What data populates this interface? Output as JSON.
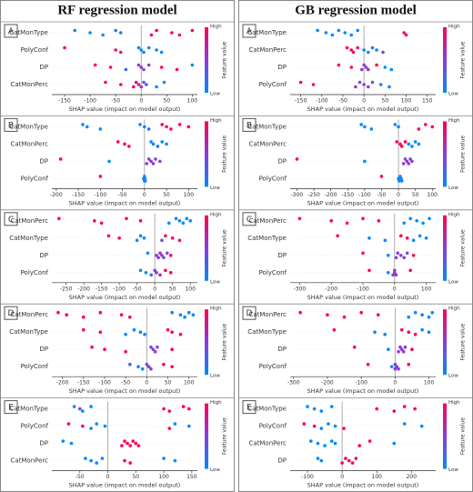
{
  "column_titles": [
    "RF regression model",
    "GB regression model"
  ],
  "colormap": [
    "#008bfb",
    "#8a3ddb",
    "#ff0052"
  ],
  "chart_data": [
    {
      "type": "beeswarm",
      "panel": "A",
      "xlabel": "SHAP value (impact on model output)",
      "colorbar": {
        "high": "High",
        "low": "Low",
        "label": "Feature value"
      },
      "xlim": [
        -175,
        110
      ],
      "xticks": [
        -150,
        -100,
        -50,
        0,
        50,
        100
      ],
      "series": [
        {
          "name": "CatMonType",
          "values": [
            -130,
            -100,
            -75,
            -50,
            -40,
            20,
            30,
            60,
            75,
            100
          ],
          "levels": [
            0,
            0,
            0,
            0.1,
            0.1,
            0.9,
            1,
            1,
            1,
            1
          ]
        },
        {
          "name": "PolyConf",
          "values": [
            -150,
            -50,
            -40,
            -5,
            0,
            5,
            15,
            30,
            40
          ],
          "levels": [
            1,
            1,
            0.9,
            0,
            0.1,
            0,
            0,
            0.1,
            0
          ]
        },
        {
          "name": "DP",
          "values": [
            -90,
            -60,
            -30,
            -5,
            0,
            5,
            15,
            40,
            70,
            100
          ],
          "levels": [
            1,
            1,
            0.2,
            0.5,
            0.6,
            0.4,
            0.5,
            1,
            1,
            0
          ]
        },
        {
          "name": "CatMonPerc",
          "values": [
            -70,
            -40,
            -15,
            -10,
            -5,
            0,
            5,
            10,
            30,
            45
          ],
          "levels": [
            1,
            0.9,
            1,
            0.8,
            0.7,
            0.6,
            0.4,
            0.2,
            0,
            0
          ]
        }
      ]
    },
    {
      "type": "beeswarm",
      "panel": "B",
      "xlabel": "SHAP value (impact on model output)",
      "colorbar": {
        "high": "High",
        "low": "Low",
        "label": "Feature value"
      },
      "xlim": [
        -210,
        120
      ],
      "xticks": [
        -200,
        -150,
        -100,
        -50,
        0,
        50,
        100
      ],
      "series": [
        {
          "name": "CatMonType",
          "values": [
            -140,
            -130,
            -100,
            -10,
            0,
            10,
            40,
            50,
            60,
            80,
            100
          ],
          "levels": [
            0,
            0,
            0,
            0,
            0.1,
            0.1,
            1,
            1,
            1,
            1,
            1
          ]
        },
        {
          "name": "CatMonPerc",
          "values": [
            -60,
            -45,
            -35,
            15,
            20,
            30,
            40,
            50
          ],
          "levels": [
            1,
            1,
            1,
            0,
            0,
            0.1,
            0,
            0
          ]
        },
        {
          "name": "DP",
          "values": [
            -190,
            -80,
            5,
            10,
            15,
            20,
            25,
            35
          ],
          "levels": [
            1,
            0,
            0.5,
            0.5,
            0.6,
            0.5,
            0.4,
            0.5
          ]
        },
        {
          "name": "PolyConf",
          "values": [
            -100,
            -2,
            0,
            0,
            1,
            2
          ],
          "levels": [
            1,
            0,
            0.1,
            0,
            0.1,
            0
          ]
        }
      ]
    },
    {
      "type": "beeswarm",
      "panel": "C",
      "xlabel": "SHAP value (impact on model output)",
      "colorbar": {
        "high": "High",
        "low": "Low",
        "label": "Feature value"
      },
      "xlim": [
        -290,
        120
      ],
      "xticks": [
        -250,
        -200,
        -150,
        -100,
        -50,
        0,
        50,
        100
      ],
      "series": [
        {
          "name": "CatMonPerc",
          "values": [
            -270,
            -170,
            -150,
            -80,
            -40,
            40,
            60,
            70,
            80,
            90,
            100
          ],
          "levels": [
            1,
            1,
            1,
            1,
            1,
            0,
            0,
            0,
            0,
            0,
            0
          ]
        },
        {
          "name": "CatMonType",
          "values": [
            -130,
            -100,
            -50,
            -40,
            -30,
            20,
            30,
            50,
            70
          ],
          "levels": [
            1,
            1,
            0,
            0,
            0,
            0.5,
            1,
            1,
            0.9
          ]
        },
        {
          "name": "DP",
          "values": [
            -20,
            5,
            10,
            15,
            20,
            25,
            35,
            45
          ],
          "levels": [
            0,
            0.5,
            0.5,
            0.6,
            0.5,
            0.4,
            0.5,
            1
          ]
        },
        {
          "name": "PolyConf",
          "values": [
            -40,
            -25,
            -10,
            0,
            5,
            15,
            30,
            45
          ],
          "levels": [
            0,
            0,
            0.2,
            0.5,
            0.5,
            0.6,
            1,
            1
          ]
        }
      ]
    },
    {
      "type": "beeswarm",
      "panel": "D",
      "xlabel": "SHAP value (impact on model output)",
      "colorbar": {
        "high": "High",
        "low": "Low",
        "label": "Feature value"
      },
      "xlim": [
        -225,
        120
      ],
      "xticks": [
        -200,
        -150,
        -100,
        -50,
        0,
        50,
        100
      ],
      "series": [
        {
          "name": "CatMonPerc",
          "values": [
            -210,
            -190,
            -150,
            -110,
            -60,
            -40,
            60,
            80,
            90,
            100,
            110
          ],
          "levels": [
            1,
            1,
            1,
            1,
            1,
            0.9,
            0,
            0,
            0,
            0,
            0
          ]
        },
        {
          "name": "CatMonType",
          "values": [
            -150,
            -110,
            -50,
            -30,
            -15,
            -5,
            50,
            60,
            80
          ],
          "levels": [
            1,
            1,
            0,
            0,
            0,
            0,
            1,
            1,
            1
          ]
        },
        {
          "name": "DP",
          "values": [
            -130,
            -100,
            -50,
            10,
            15,
            20,
            25,
            60
          ],
          "levels": [
            1,
            1,
            1,
            0.4,
            0.5,
            0.5,
            0.5,
            1
          ]
        },
        {
          "name": "PolyConf",
          "values": [
            -40,
            -20,
            -10,
            0,
            5,
            10,
            40,
            60
          ],
          "levels": [
            0.3,
            0,
            0,
            0.5,
            0.5,
            0.5,
            1,
            1
          ]
        }
      ]
    },
    {
      "type": "beeswarm",
      "panel": "E",
      "xlabel": "SHAP value (impact on model output)",
      "colorbar": {
        "high": "High",
        "low": "Low",
        "label": "Feature value"
      },
      "xlim": [
        -100,
        160
      ],
      "xticks": [
        -50,
        0,
        50,
        100,
        150
      ],
      "series": [
        {
          "name": "CatMonType",
          "values": [
            -60,
            -50,
            -45,
            -30,
            100,
            110,
            135,
            145
          ],
          "levels": [
            0,
            0.5,
            0,
            0,
            1,
            1,
            1,
            1
          ]
        },
        {
          "name": "PolyConf",
          "values": [
            -70,
            -45,
            -30,
            -20,
            -5,
            110,
            120,
            145
          ],
          "levels": [
            1,
            0.9,
            0,
            0,
            0,
            1,
            0,
            0
          ]
        },
        {
          "name": "DP",
          "values": [
            -80,
            -65,
            25,
            30,
            35,
            40,
            45,
            50,
            55
          ],
          "levels": [
            0,
            0,
            1,
            1,
            1,
            1,
            1,
            1,
            1
          ]
        },
        {
          "name": "CatMonPerc",
          "values": [
            -40,
            -30,
            -20,
            -10,
            30,
            40,
            100,
            120
          ],
          "levels": [
            0,
            0,
            0,
            0,
            1,
            1,
            0.1,
            0
          ]
        }
      ]
    },
    {
      "type": "beeswarm",
      "panel": "A",
      "xlabel": "SHAP value (impact on model output)",
      "colorbar": {
        "high": "High",
        "low": "Low",
        "label": "Feature value"
      },
      "xlim": [
        -175,
        170
      ],
      "xticks": [
        -150,
        -100,
        -50,
        0,
        50,
        100,
        150
      ],
      "series": [
        {
          "name": "CatMonType",
          "values": [
            -110,
            -90,
            -75,
            -60,
            -45,
            -30,
            -15,
            95,
            100
          ],
          "levels": [
            0,
            0,
            0,
            0,
            0,
            0,
            0,
            1,
            1
          ]
        },
        {
          "name": "CatMonPerc",
          "values": [
            -40,
            -30,
            -25,
            -15,
            0,
            10,
            20,
            30,
            45
          ],
          "levels": [
            1,
            1,
            1,
            1,
            0,
            0,
            0.2,
            0,
            0.5
          ]
        },
        {
          "name": "DP",
          "values": [
            -60,
            -30,
            -5,
            0,
            5,
            10,
            30,
            50,
            65
          ],
          "levels": [
            1,
            1,
            0.5,
            0.5,
            0.5,
            0.6,
            1,
            0,
            0
          ]
        },
        {
          "name": "PolyConf",
          "values": [
            -150,
            -120,
            -20,
            -10,
            0,
            10,
            20,
            40,
            60
          ],
          "levels": [
            1,
            1,
            0.6,
            0.5,
            0.5,
            0.5,
            0.3,
            0.1,
            0
          ]
        }
      ]
    },
    {
      "type": "beeswarm",
      "panel": "B",
      "xlabel": "SHAP value (impact on model output)",
      "colorbar": {
        "high": "High",
        "low": "Low",
        "label": "Feature value"
      },
      "xlim": [
        -320,
        110
      ],
      "xticks": [
        -300,
        -250,
        -200,
        -150,
        -100,
        -50,
        0,
        50,
        100
      ],
      "series": [
        {
          "name": "CatMonType",
          "values": [
            -110,
            -100,
            -80,
            -10,
            0,
            60,
            80,
            100
          ],
          "levels": [
            0,
            0,
            0,
            0,
            0,
            1,
            1,
            1
          ]
        },
        {
          "name": "CatMonPerc",
          "values": [
            -5,
            5,
            10,
            20,
            30,
            40,
            50,
            60
          ],
          "levels": [
            1,
            1,
            1,
            1,
            0,
            0,
            0,
            0
          ]
        },
        {
          "name": "DP",
          "values": [
            -300,
            -100,
            15,
            20,
            25,
            30,
            35,
            40
          ],
          "levels": [
            1,
            0,
            0.5,
            0.5,
            0.6,
            0.5,
            0.4,
            0.5
          ]
        },
        {
          "name": "PolyConf",
          "values": [
            -50,
            0,
            2,
            5,
            8,
            10
          ],
          "levels": [
            1,
            0,
            0.1,
            0,
            0.1,
            0
          ]
        }
      ]
    },
    {
      "type": "beeswarm",
      "panel": "C",
      "xlabel": "SHAP value (impact on model output)",
      "colorbar": {
        "high": "High",
        "low": "Low",
        "label": "Feature value"
      },
      "xlim": [
        -330,
        130
      ],
      "xticks": [
        -300,
        -200,
        -100,
        0,
        100
      ],
      "series": [
        {
          "name": "CatMonPerc",
          "values": [
            -300,
            -200,
            -150,
            -100,
            -50,
            30,
            50,
            70,
            90,
            110
          ],
          "levels": [
            1,
            1,
            1,
            1,
            1,
            0,
            0,
            0,
            0,
            0
          ]
        },
        {
          "name": "CatMonType",
          "values": [
            -180,
            -80,
            -30,
            20,
            40,
            60,
            80,
            100
          ],
          "levels": [
            1,
            0,
            0,
            1,
            1,
            0,
            0,
            0
          ]
        },
        {
          "name": "DP",
          "values": [
            -100,
            -20,
            5,
            10,
            20,
            30,
            40,
            60
          ],
          "levels": [
            1,
            0,
            0.5,
            0.5,
            0.5,
            0.5,
            0.4,
            1
          ]
        },
        {
          "name": "PolyConf",
          "values": [
            -80,
            -20,
            -5,
            0,
            0,
            5,
            50
          ],
          "levels": [
            1,
            0,
            0.5,
            0.5,
            0.6,
            0.5,
            1
          ]
        }
      ]
    },
    {
      "type": "beeswarm",
      "panel": "D",
      "xlabel": "SHAP value (impact on model output)",
      "colorbar": {
        "high": "High",
        "low": "Low",
        "label": "Feature value"
      },
      "xlim": [
        -310,
        120
      ],
      "xticks": [
        -300,
        -200,
        -100,
        0,
        100
      ],
      "series": [
        {
          "name": "CatMonPerc",
          "values": [
            -280,
            -200,
            -150,
            -100,
            -50,
            40,
            60,
            80,
            100,
            110
          ],
          "levels": [
            1,
            1,
            1,
            1,
            1,
            0,
            0,
            0,
            0,
            0
          ]
        },
        {
          "name": "CatMonType",
          "values": [
            -180,
            -60,
            -30,
            20,
            40,
            60,
            80,
            100
          ],
          "levels": [
            1,
            0,
            0,
            1,
            1,
            1,
            0,
            0
          ]
        },
        {
          "name": "DP",
          "values": [
            -120,
            -20,
            10,
            15,
            20,
            25,
            30,
            50
          ],
          "levels": [
            1,
            0,
            0.5,
            0.5,
            0.5,
            0.5,
            0.5,
            1
          ]
        },
        {
          "name": "PolyConf",
          "values": [
            -80,
            -10,
            0,
            0,
            5,
            10,
            40
          ],
          "levels": [
            1,
            0,
            0.5,
            0.5,
            0.5,
            0.5,
            1
          ]
        }
      ]
    },
    {
      "type": "beeswarm",
      "panel": "E",
      "xlabel": "SHAP value (impact on model output)",
      "colorbar": {
        "high": "High",
        "low": "Low",
        "label": "Feature value"
      },
      "xlim": [
        -150,
        270
      ],
      "xticks": [
        -100,
        0,
        100,
        200
      ],
      "series": [
        {
          "name": "CatMonType",
          "values": [
            -100,
            -80,
            -60,
            -30,
            100,
            150,
            180,
            210
          ],
          "levels": [
            0,
            0,
            0,
            0,
            1,
            1,
            1,
            1
          ]
        },
        {
          "name": "PolyConf",
          "values": [
            -110,
            -80,
            -60,
            -40,
            -20,
            5,
            180,
            230
          ],
          "levels": [
            1,
            1,
            0,
            0,
            0,
            1,
            0,
            0
          ]
        },
        {
          "name": "CatMonPerc",
          "values": [
            -90,
            -70,
            -50,
            -30,
            -20,
            50,
            80,
            150
          ],
          "levels": [
            0,
            0,
            0,
            0,
            0,
            1,
            1,
            0
          ]
        },
        {
          "name": "DP",
          "values": [
            -70,
            -60,
            0,
            10,
            20,
            30,
            40
          ],
          "levels": [
            0,
            0,
            1,
            1,
            1,
            1,
            1
          ]
        }
      ]
    }
  ]
}
